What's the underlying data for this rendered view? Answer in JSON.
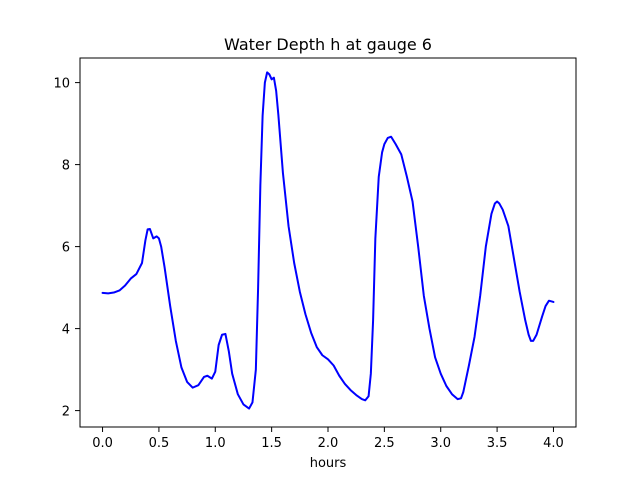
{
  "chart_data": {
    "type": "line",
    "title": "Water Depth h at gauge 6",
    "xlabel": "hours",
    "ylabel": "",
    "xlim": [
      -0.2,
      4.2
    ],
    "ylim": [
      1.6,
      10.6
    ],
    "xticks": [
      0.0,
      0.5,
      1.0,
      1.5,
      2.0,
      2.5,
      3.0,
      3.5,
      4.0
    ],
    "xtick_labels": [
      "0.0",
      "0.5",
      "1.0",
      "1.5",
      "2.0",
      "2.5",
      "3.0",
      "3.5",
      "4.0"
    ],
    "yticks": [
      2,
      4,
      6,
      8,
      10
    ],
    "ytick_labels": [
      "2",
      "4",
      "6",
      "8",
      "10"
    ],
    "grid": false,
    "series": [
      {
        "color": "#0000ff",
        "x": [
          0.0,
          0.05,
          0.1,
          0.15,
          0.2,
          0.25,
          0.3,
          0.35,
          0.38,
          0.4,
          0.42,
          0.45,
          0.48,
          0.5,
          0.52,
          0.55,
          0.6,
          0.65,
          0.7,
          0.75,
          0.8,
          0.85,
          0.9,
          0.93,
          0.97,
          1.0,
          1.03,
          1.06,
          1.09,
          1.12,
          1.15,
          1.2,
          1.25,
          1.3,
          1.33,
          1.36,
          1.38,
          1.4,
          1.42,
          1.44,
          1.46,
          1.48,
          1.5,
          1.52,
          1.54,
          1.56,
          1.6,
          1.65,
          1.7,
          1.75,
          1.8,
          1.85,
          1.9,
          1.95,
          2.0,
          2.05,
          2.1,
          2.15,
          2.2,
          2.25,
          2.3,
          2.33,
          2.36,
          2.38,
          2.4,
          2.42,
          2.45,
          2.48,
          2.5,
          2.53,
          2.56,
          2.6,
          2.65,
          2.7,
          2.75,
          2.8,
          2.85,
          2.9,
          2.95,
          3.0,
          3.05,
          3.1,
          3.15,
          3.18,
          3.2,
          3.25,
          3.3,
          3.35,
          3.4,
          3.45,
          3.48,
          3.5,
          3.52,
          3.55,
          3.6,
          3.65,
          3.7,
          3.75,
          3.78,
          3.8,
          3.82,
          3.85,
          3.9,
          3.93,
          3.96,
          4.0
        ],
        "y": [
          4.87,
          4.86,
          4.88,
          4.93,
          5.05,
          5.22,
          5.33,
          5.6,
          6.15,
          6.42,
          6.43,
          6.2,
          6.25,
          6.2,
          6.0,
          5.5,
          4.55,
          3.7,
          3.05,
          2.7,
          2.56,
          2.62,
          2.82,
          2.85,
          2.78,
          2.95,
          3.6,
          3.85,
          3.87,
          3.45,
          2.9,
          2.4,
          2.15,
          2.05,
          2.2,
          3.0,
          5.0,
          7.5,
          9.2,
          10.0,
          10.25,
          10.2,
          10.08,
          10.12,
          9.8,
          9.2,
          7.8,
          6.5,
          5.6,
          4.9,
          4.35,
          3.9,
          3.55,
          3.35,
          3.25,
          3.1,
          2.85,
          2.65,
          2.5,
          2.38,
          2.28,
          2.25,
          2.35,
          2.9,
          4.2,
          6.2,
          7.7,
          8.3,
          8.5,
          8.65,
          8.68,
          8.5,
          8.25,
          7.7,
          7.1,
          6.0,
          4.8,
          4.0,
          3.3,
          2.9,
          2.6,
          2.4,
          2.28,
          2.3,
          2.45,
          3.1,
          3.8,
          4.8,
          6.0,
          6.8,
          7.05,
          7.1,
          7.05,
          6.9,
          6.5,
          5.7,
          4.9,
          4.2,
          3.85,
          3.7,
          3.7,
          3.85,
          4.3,
          4.55,
          4.68,
          4.65
        ]
      }
    ]
  }
}
